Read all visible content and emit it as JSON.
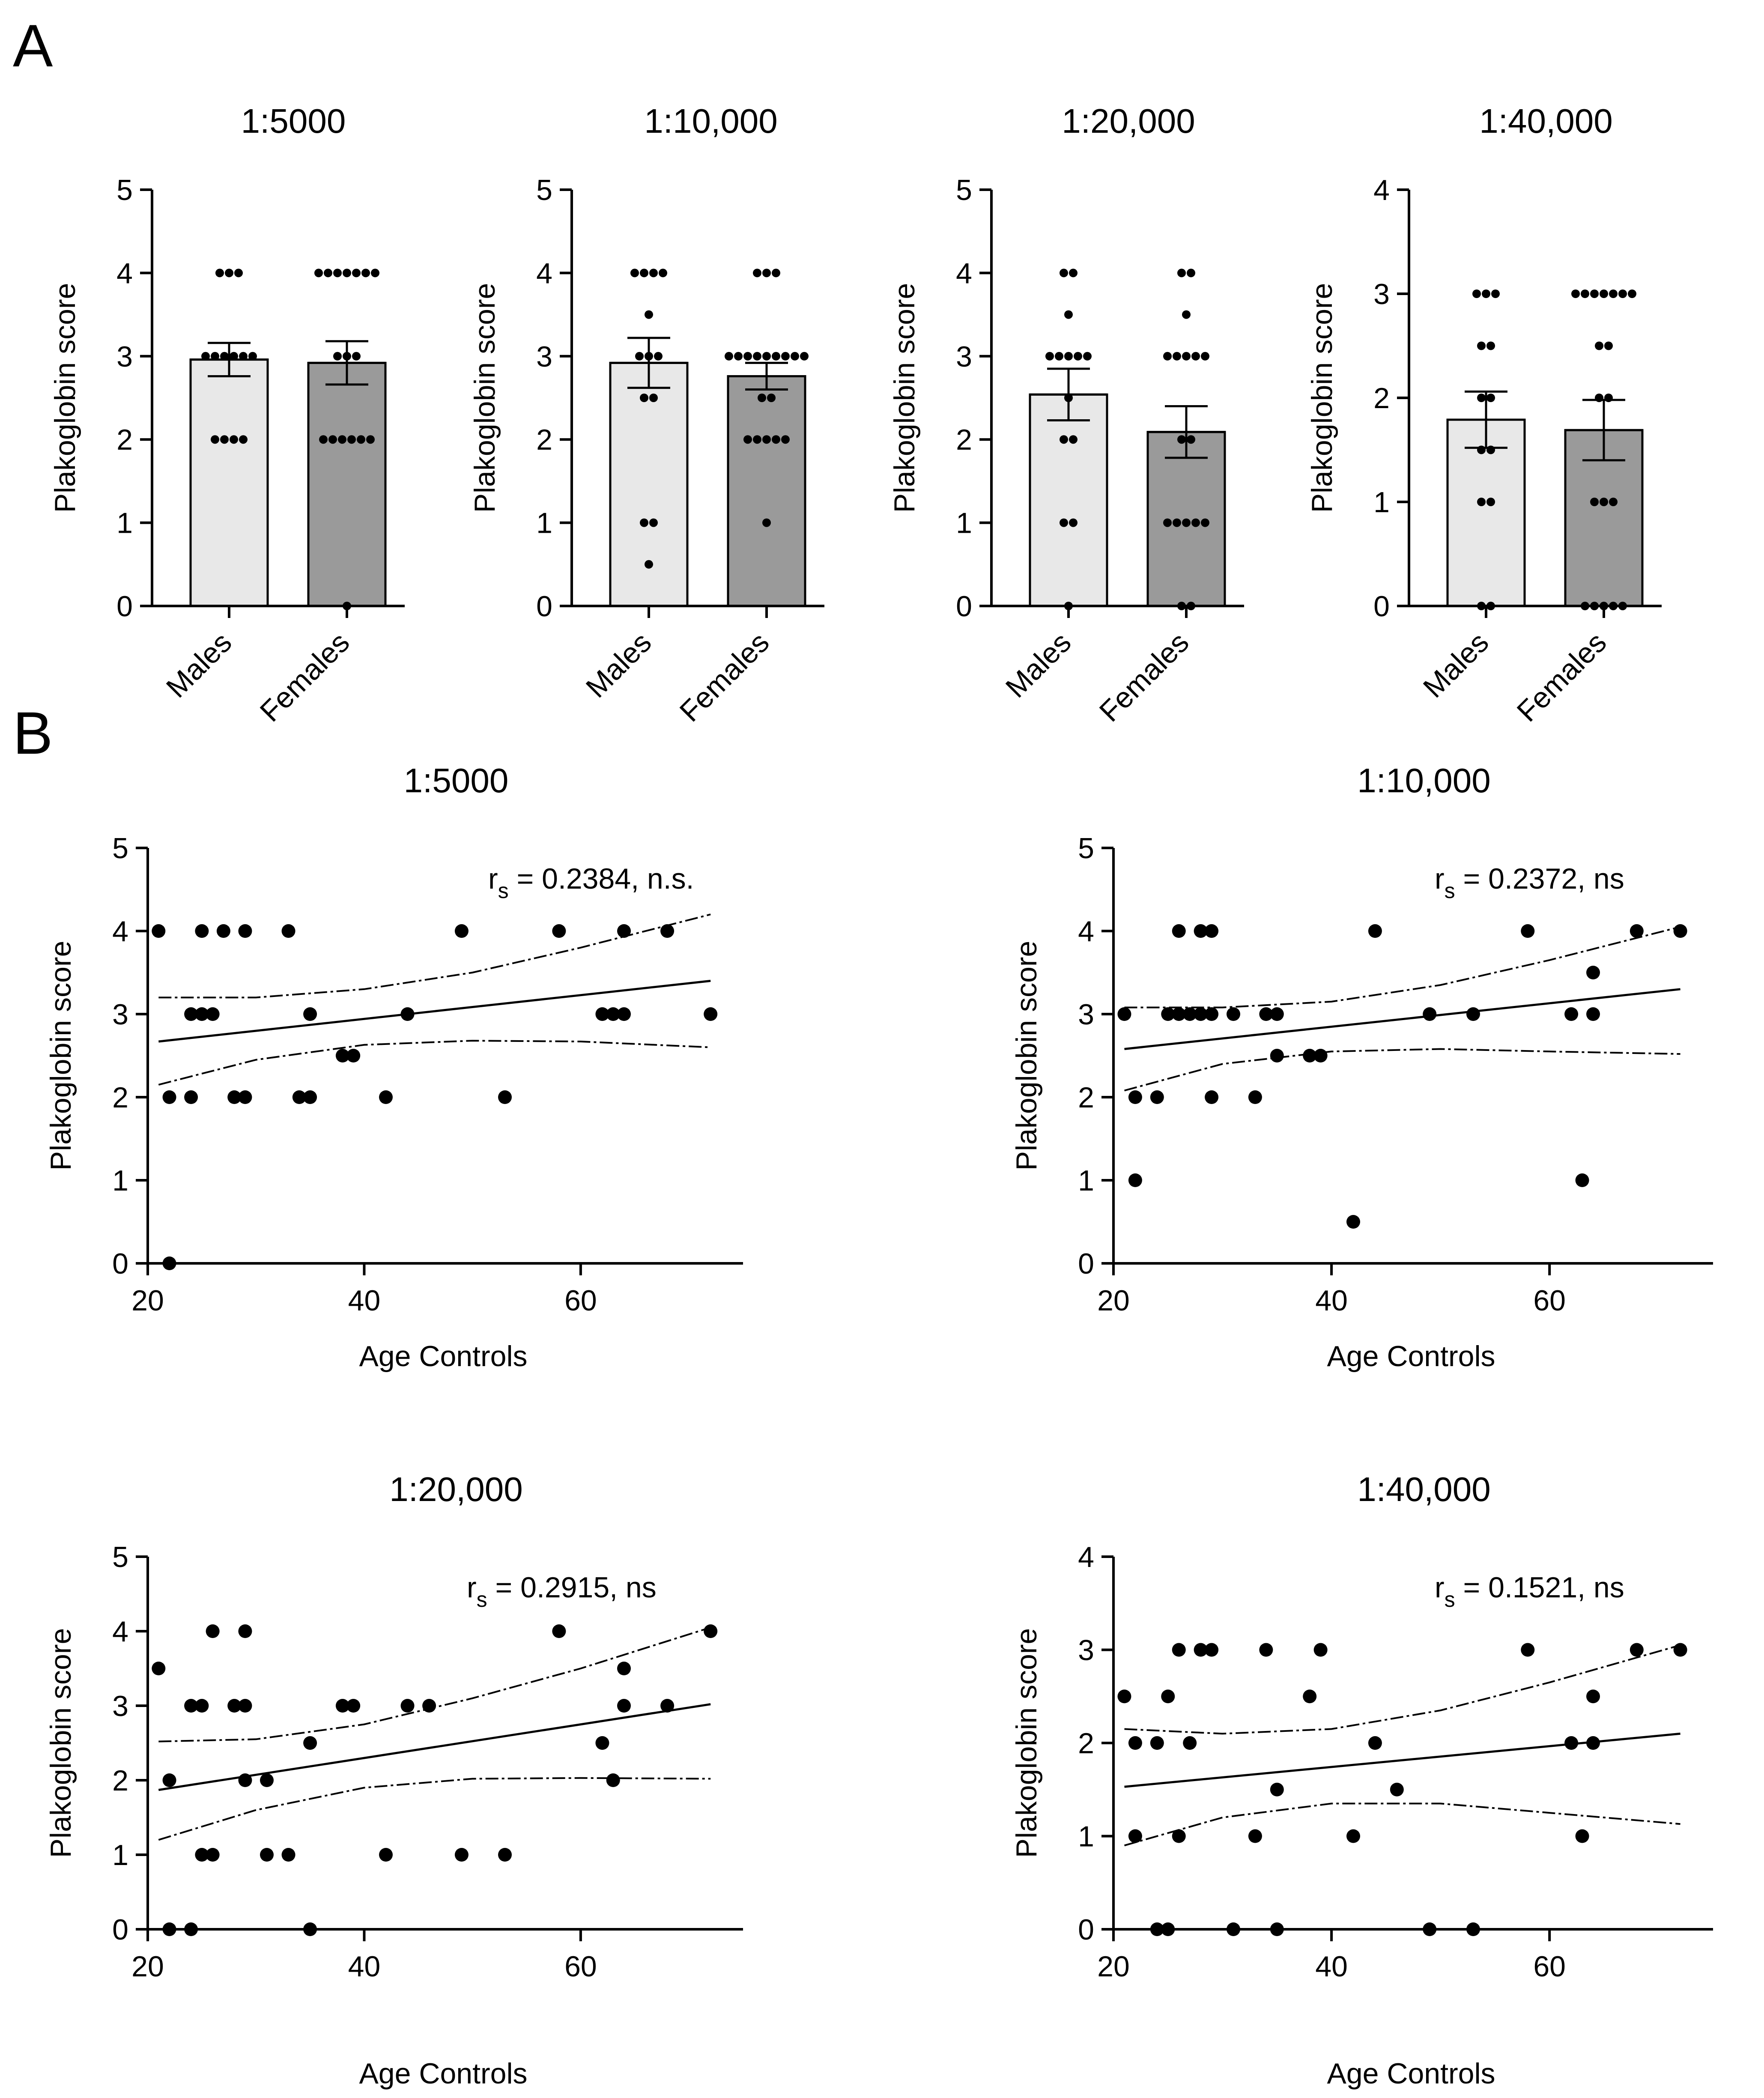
{
  "colors": {
    "axis": "#000000",
    "male_bar": "#e8e8e8",
    "female_bar": "#9a9a9a",
    "point": "#000000"
  },
  "panel_labels": {
    "a": "A",
    "b": "B"
  },
  "chart_data": [
    {
      "panel": "A",
      "type": "bar",
      "title": "1:5000",
      "categories": [
        "Males",
        "Females"
      ],
      "ylabel": "Plakoglobin score",
      "ylim": [
        0,
        5
      ],
      "yticks": [
        0,
        1,
        2,
        3,
        4,
        5
      ],
      "means": [
        2.96,
        2.92
      ],
      "sem": [
        0.2,
        0.26
      ],
      "points": [
        [
          4,
          4,
          4,
          3,
          3,
          3,
          3,
          3,
          3,
          2,
          2,
          2,
          2
        ],
        [
          4,
          4,
          4,
          4,
          4,
          4,
          4,
          3,
          3,
          3,
          2,
          2,
          2,
          2,
          2,
          2,
          0
        ]
      ]
    },
    {
      "panel": "A",
      "type": "bar",
      "title": "1:10,000",
      "categories": [
        "Males",
        "Females"
      ],
      "ylabel": "Plakoglobin score",
      "ylim": [
        0,
        5
      ],
      "yticks": [
        0,
        1,
        2,
        3,
        4,
        5
      ],
      "means": [
        2.92,
        2.76
      ],
      "sem": [
        0.3,
        0.16
      ],
      "points": [
        [
          4,
          4,
          4,
          4,
          3.5,
          3,
          3,
          3,
          2.5,
          2.5,
          1,
          1,
          0.5
        ],
        [
          4,
          4,
          4,
          3,
          3,
          3,
          3,
          3,
          3,
          3,
          3,
          3,
          2.5,
          2.5,
          2,
          2,
          2,
          2,
          2,
          1
        ]
      ]
    },
    {
      "panel": "A",
      "type": "bar",
      "title": "1:20,000",
      "categories": [
        "Males",
        "Females"
      ],
      "ylabel": "Plakoglobin score",
      "ylim": [
        0,
        5
      ],
      "yticks": [
        0,
        1,
        2,
        3,
        4,
        5
      ],
      "means": [
        2.54,
        2.09
      ],
      "sem": [
        0.31,
        0.31
      ],
      "points": [
        [
          4,
          4,
          3.5,
          3,
          3,
          3,
          3,
          3,
          2.5,
          2,
          2,
          1,
          1,
          0
        ],
        [
          4,
          4,
          3.5,
          3,
          3,
          3,
          3,
          3,
          2,
          2,
          1,
          1,
          1,
          1,
          1,
          0,
          0
        ]
      ]
    },
    {
      "panel": "A",
      "type": "bar",
      "title": "1:40,000",
      "categories": [
        "Males",
        "Females"
      ],
      "ylabel": "Plakoglobin score",
      "ylim": [
        0,
        4
      ],
      "yticks": [
        0,
        1,
        2,
        3,
        4
      ],
      "means": [
        1.79,
        1.69
      ],
      "sem": [
        0.27,
        0.29
      ],
      "points": [
        [
          3,
          3,
          3,
          2.5,
          2.5,
          2,
          2,
          1.5,
          1.5,
          1,
          1,
          0,
          0
        ],
        [
          3,
          3,
          3,
          3,
          3,
          3,
          3,
          2.5,
          2.5,
          2,
          2,
          1,
          1,
          1,
          0,
          0,
          0,
          0,
          0
        ]
      ]
    },
    {
      "panel": "B",
      "type": "scatter",
      "title": "1:5000",
      "xlabel": "Age Controls",
      "ylabel": "Plakoglobin score",
      "xlim": [
        20,
        75
      ],
      "xticks": [
        20,
        40,
        60
      ],
      "ylim": [
        0,
        5
      ],
      "yticks": [
        0,
        1,
        2,
        3,
        4,
        5
      ],
      "annotation": {
        "r": "r",
        "sub": "s",
        "text": " = 0.2384, n.s."
      },
      "points": [
        [
          21,
          4
        ],
        [
          22,
          2
        ],
        [
          22,
          0
        ],
        [
          24,
          2
        ],
        [
          24,
          3
        ],
        [
          25,
          3
        ],
        [
          25,
          4
        ],
        [
          26,
          3
        ],
        [
          27,
          4
        ],
        [
          28,
          2
        ],
        [
          29,
          4
        ],
        [
          29,
          2
        ],
        [
          33,
          4
        ],
        [
          34,
          2
        ],
        [
          35,
          2
        ],
        [
          35,
          3
        ],
        [
          38,
          2.5
        ],
        [
          39,
          2.5
        ],
        [
          42,
          2
        ],
        [
          44,
          3
        ],
        [
          49,
          4
        ],
        [
          53,
          2
        ],
        [
          58,
          4
        ],
        [
          62,
          3
        ],
        [
          63,
          3
        ],
        [
          64,
          3
        ],
        [
          64,
          4
        ],
        [
          68,
          4
        ],
        [
          72,
          3
        ]
      ],
      "fit": [
        [
          21,
          2.67
        ],
        [
          72,
          3.4
        ]
      ],
      "ci_upper": [
        [
          21,
          3.2
        ],
        [
          30,
          3.2
        ],
        [
          40,
          3.3
        ],
        [
          50,
          3.5
        ],
        [
          60,
          3.8
        ],
        [
          72,
          4.2
        ]
      ],
      "ci_lower": [
        [
          21,
          2.15
        ],
        [
          30,
          2.45
        ],
        [
          40,
          2.63
        ],
        [
          50,
          2.68
        ],
        [
          60,
          2.67
        ],
        [
          72,
          2.6
        ]
      ]
    },
    {
      "panel": "B",
      "type": "scatter",
      "title": "1:10,000",
      "xlabel": "Age Controls",
      "ylabel": "Plakoglobin score",
      "xlim": [
        20,
        75
      ],
      "xticks": [
        20,
        40,
        60
      ],
      "ylim": [
        0,
        5
      ],
      "yticks": [
        0,
        1,
        2,
        3,
        4,
        5
      ],
      "annotation": {
        "r": "r",
        "sub": "s",
        "text": " = 0.2372, ns"
      },
      "points": [
        [
          21,
          3
        ],
        [
          22,
          2
        ],
        [
          22,
          1
        ],
        [
          24,
          2
        ],
        [
          25,
          3
        ],
        [
          26,
          4
        ],
        [
          26,
          3
        ],
        [
          27,
          3
        ],
        [
          28,
          4
        ],
        [
          28,
          3
        ],
        [
          29,
          4
        ],
        [
          29,
          2
        ],
        [
          29,
          3
        ],
        [
          31,
          3
        ],
        [
          33,
          2
        ],
        [
          34,
          3
        ],
        [
          35,
          3
        ],
        [
          35,
          2.5
        ],
        [
          38,
          2.5
        ],
        [
          39,
          2.5
        ],
        [
          42,
          0.5
        ],
        [
          44,
          4
        ],
        [
          49,
          3
        ],
        [
          53,
          3
        ],
        [
          58,
          4
        ],
        [
          62,
          3
        ],
        [
          63,
          1
        ],
        [
          64,
          3.5
        ],
        [
          64,
          3
        ],
        [
          68,
          4
        ],
        [
          72,
          4
        ]
      ],
      "fit": [
        [
          21,
          2.58
        ],
        [
          72,
          3.3
        ]
      ],
      "ci_upper": [
        [
          21,
          3.08
        ],
        [
          30,
          3.08
        ],
        [
          40,
          3.15
        ],
        [
          50,
          3.35
        ],
        [
          60,
          3.65
        ],
        [
          72,
          4.05
        ]
      ],
      "ci_lower": [
        [
          21,
          2.08
        ],
        [
          30,
          2.4
        ],
        [
          40,
          2.55
        ],
        [
          50,
          2.58
        ],
        [
          60,
          2.55
        ],
        [
          72,
          2.52
        ]
      ]
    },
    {
      "panel": "B",
      "type": "scatter",
      "title": "1:20,000",
      "xlabel": "Age Controls",
      "ylabel": "Plakoglobin score",
      "xlim": [
        20,
        75
      ],
      "xticks": [
        20,
        40,
        60
      ],
      "ylim": [
        0,
        5
      ],
      "yticks": [
        0,
        1,
        2,
        3,
        4,
        5
      ],
      "annotation": {
        "r": "r",
        "sub": "s",
        "text": " = 0.2915, ns"
      },
      "points": [
        [
          21,
          3.5
        ],
        [
          22,
          2
        ],
        [
          22,
          0
        ],
        [
          24,
          3
        ],
        [
          24,
          0
        ],
        [
          25,
          3
        ],
        [
          25,
          1
        ],
        [
          26,
          4
        ],
        [
          26,
          1
        ],
        [
          28,
          3
        ],
        [
          29,
          4
        ],
        [
          29,
          3
        ],
        [
          29,
          2
        ],
        [
          31,
          2
        ],
        [
          31,
          1
        ],
        [
          33,
          1
        ],
        [
          35,
          2.5
        ],
        [
          35,
          0
        ],
        [
          38,
          3
        ],
        [
          39,
          3
        ],
        [
          42,
          1
        ],
        [
          44,
          3
        ],
        [
          46,
          3
        ],
        [
          49,
          1
        ],
        [
          53,
          1
        ],
        [
          58,
          4
        ],
        [
          62,
          2.5
        ],
        [
          63,
          2
        ],
        [
          64,
          3.5
        ],
        [
          64,
          3
        ],
        [
          68,
          3
        ],
        [
          72,
          4
        ]
      ],
      "fit": [
        [
          21,
          1.87
        ],
        [
          72,
          3.02
        ]
      ],
      "ci_upper": [
        [
          21,
          2.52
        ],
        [
          30,
          2.55
        ],
        [
          40,
          2.75
        ],
        [
          50,
          3.1
        ],
        [
          60,
          3.5
        ],
        [
          72,
          4.05
        ]
      ],
      "ci_lower": [
        [
          21,
          1.2
        ],
        [
          30,
          1.6
        ],
        [
          40,
          1.9
        ],
        [
          50,
          2.02
        ],
        [
          60,
          2.03
        ],
        [
          72,
          2.02
        ]
      ]
    },
    {
      "panel": "B",
      "type": "scatter",
      "title": "1:40,000",
      "xlabel": "Age Controls",
      "ylabel": "Plakoglobin score",
      "xlim": [
        20,
        75
      ],
      "xticks": [
        20,
        40,
        60
      ],
      "ylim": [
        0,
        4
      ],
      "yticks": [
        0,
        1,
        2,
        3,
        4
      ],
      "annotation": {
        "r": "r",
        "sub": "s",
        "text": " = 0.1521, ns"
      },
      "points": [
        [
          21,
          2.5
        ],
        [
          22,
          2
        ],
        [
          22,
          1
        ],
        [
          24,
          2
        ],
        [
          24,
          0
        ],
        [
          25,
          0
        ],
        [
          25,
          2.5
        ],
        [
          26,
          3
        ],
        [
          26,
          1
        ],
        [
          27,
          2
        ],
        [
          28,
          3
        ],
        [
          29,
          3
        ],
        [
          31,
          0
        ],
        [
          33,
          1
        ],
        [
          34,
          3
        ],
        [
          35,
          1.5
        ],
        [
          35,
          0
        ],
        [
          38,
          2.5
        ],
        [
          39,
          3
        ],
        [
          42,
          1
        ],
        [
          44,
          2
        ],
        [
          46,
          1.5
        ],
        [
          49,
          0
        ],
        [
          53,
          0
        ],
        [
          58,
          3
        ],
        [
          62,
          2
        ],
        [
          63,
          1
        ],
        [
          64,
          2.5
        ],
        [
          64,
          2
        ],
        [
          68,
          3
        ],
        [
          72,
          3
        ]
      ],
      "fit": [
        [
          21,
          1.53
        ],
        [
          72,
          2.1
        ]
      ],
      "ci_upper": [
        [
          21,
          2.15
        ],
        [
          30,
          2.1
        ],
        [
          40,
          2.15
        ],
        [
          50,
          2.35
        ],
        [
          60,
          2.65
        ],
        [
          72,
          3.05
        ]
      ],
      "ci_lower": [
        [
          21,
          0.9
        ],
        [
          30,
          1.2
        ],
        [
          40,
          1.35
        ],
        [
          50,
          1.35
        ],
        [
          60,
          1.25
        ],
        [
          72,
          1.13
        ]
      ]
    }
  ]
}
